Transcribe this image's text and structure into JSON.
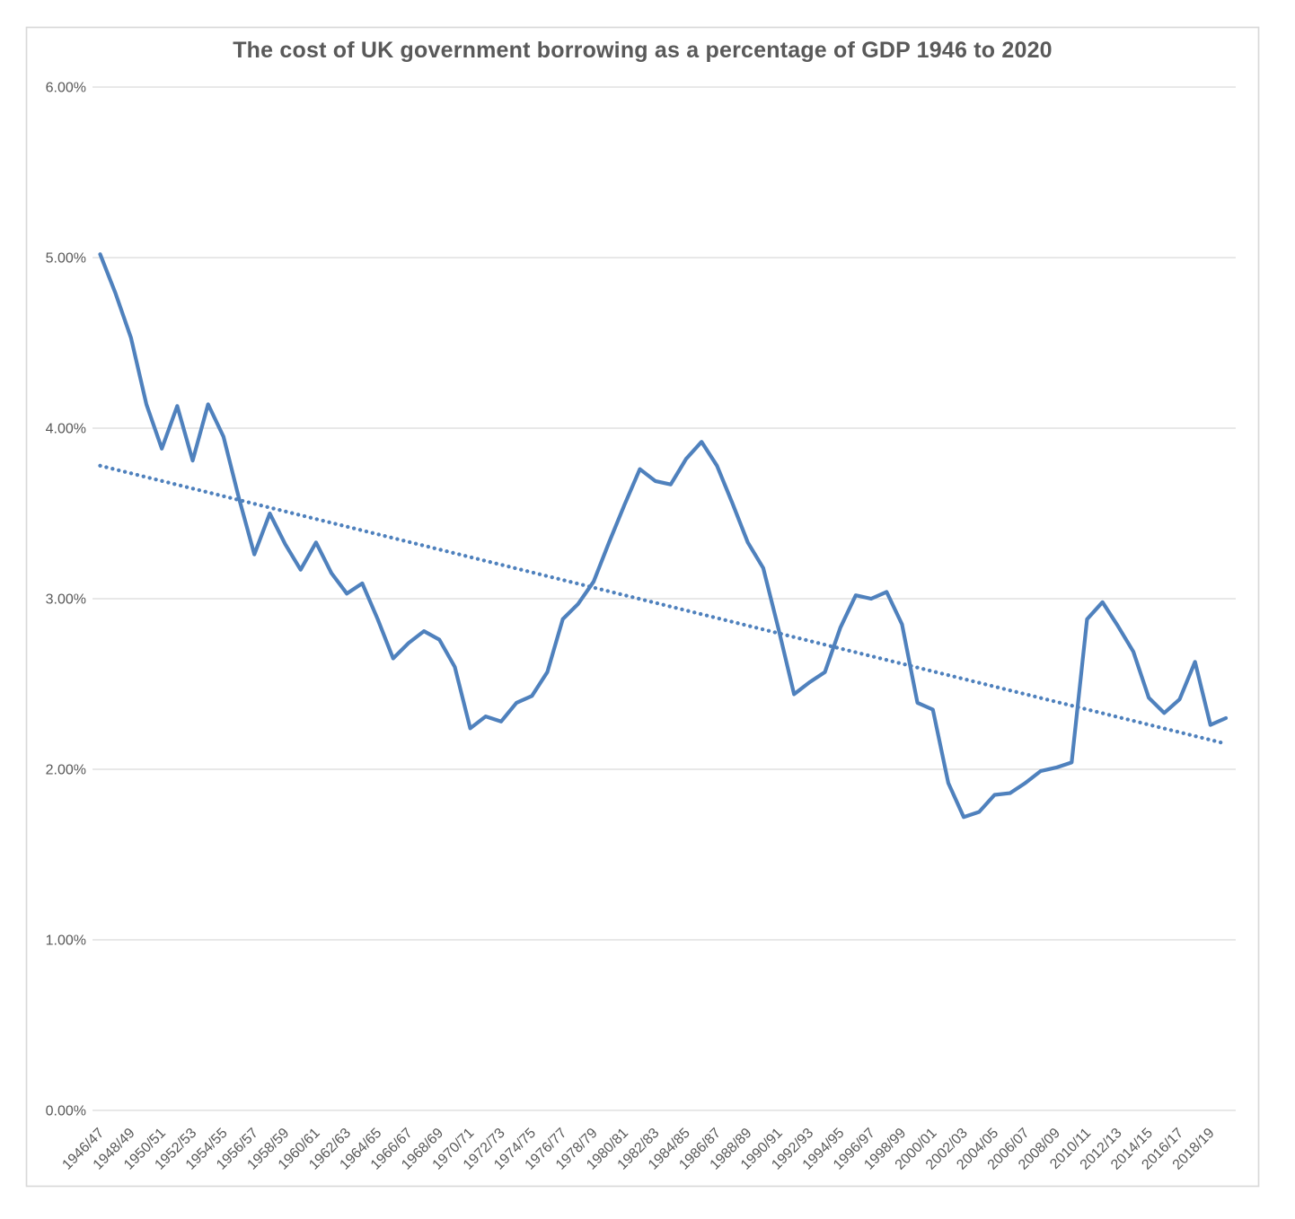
{
  "colors": {
    "series_line": "#4F81BD",
    "trend_line": "#4F81BD",
    "gridline": "#D9D9D9",
    "frame_border": "#D9D9D9",
    "text": "#595959",
    "background": "#FFFFFF"
  },
  "chart_data": {
    "type": "line",
    "title": "The cost of UK government borrowing as a percentage of GDP 1946 to 2020",
    "xlabel": "",
    "ylabel": "",
    "ylim": [
      0,
      6
    ],
    "grid": "horizontal",
    "legend_position": "none",
    "y_tick_labels": [
      "0.00%",
      "1.00%",
      "2.00%",
      "3.00%",
      "4.00%",
      "5.00%",
      "6.00%"
    ],
    "x_tick_labels": [
      "1946/47",
      "1948/49",
      "1950/51",
      "1952/53",
      "1954/55",
      "1956/57",
      "1958/59",
      "1960/61",
      "1962/63",
      "1964/65",
      "1966/67",
      "1968/69",
      "1970/71",
      "1972/73",
      "1974/75",
      "1976/77",
      "1978/79",
      "1980/81",
      "1982/83",
      "1984/85",
      "1986/87",
      "1988/89",
      "1990/91",
      "1992/93",
      "1994/95",
      "1996/97",
      "1998/99",
      "2000/01",
      "2002/03",
      "2004/05",
      "2006/07",
      "2008/09",
      "2010/11",
      "2012/13",
      "2014/15",
      "2016/17",
      "2018/19"
    ],
    "categories": [
      "1946/47",
      "1947/48",
      "1948/49",
      "1949/50",
      "1950/51",
      "1951/52",
      "1952/53",
      "1953/54",
      "1954/55",
      "1955/56",
      "1956/57",
      "1957/58",
      "1958/59",
      "1959/60",
      "1960/61",
      "1961/62",
      "1962/63",
      "1963/64",
      "1964/65",
      "1965/66",
      "1966/67",
      "1967/68",
      "1968/69",
      "1969/70",
      "1970/71",
      "1971/72",
      "1972/73",
      "1973/74",
      "1974/75",
      "1975/76",
      "1976/77",
      "1977/78",
      "1978/79",
      "1979/80",
      "1980/81",
      "1981/82",
      "1982/83",
      "1983/84",
      "1984/85",
      "1985/86",
      "1986/87",
      "1987/88",
      "1988/89",
      "1989/90",
      "1990/91",
      "1991/92",
      "1992/93",
      "1993/94",
      "1994/95",
      "1995/96",
      "1996/97",
      "1997/98",
      "1998/99",
      "1999/00",
      "2000/01",
      "2001/02",
      "2002/03",
      "2003/04",
      "2004/05",
      "2005/06",
      "2006/07",
      "2007/08",
      "2008/09",
      "2009/10",
      "2010/11",
      "2011/12",
      "2012/13",
      "2013/14",
      "2014/15",
      "2015/16",
      "2016/17",
      "2017/18",
      "2018/19",
      "2019/20"
    ],
    "values": [
      5.02,
      4.79,
      4.53,
      4.14,
      3.88,
      4.13,
      3.81,
      4.14,
      3.95,
      3.59,
      3.26,
      3.5,
      3.32,
      3.17,
      3.33,
      3.15,
      3.03,
      3.09,
      2.88,
      2.65,
      2.74,
      2.81,
      2.76,
      2.6,
      2.24,
      2.31,
      2.28,
      2.39,
      2.43,
      2.57,
      2.88,
      2.97,
      3.1,
      3.33,
      3.55,
      3.76,
      3.69,
      3.67,
      3.82,
      3.92,
      3.78,
      3.56,
      3.33,
      3.18,
      2.82,
      2.44,
      2.51,
      2.57,
      2.83,
      3.02,
      3.0,
      3.04,
      2.85,
      2.39,
      2.35,
      1.92,
      1.72,
      1.75,
      1.85,
      1.86,
      1.92,
      1.99,
      2.01,
      2.04,
      2.88,
      2.98,
      2.84,
      2.69,
      2.42,
      2.33,
      2.41,
      2.63,
      2.26,
      2.3
    ],
    "trendline": {
      "type": "linear",
      "style": "dotted",
      "start_value": 3.78,
      "end_value": 2.15
    }
  }
}
